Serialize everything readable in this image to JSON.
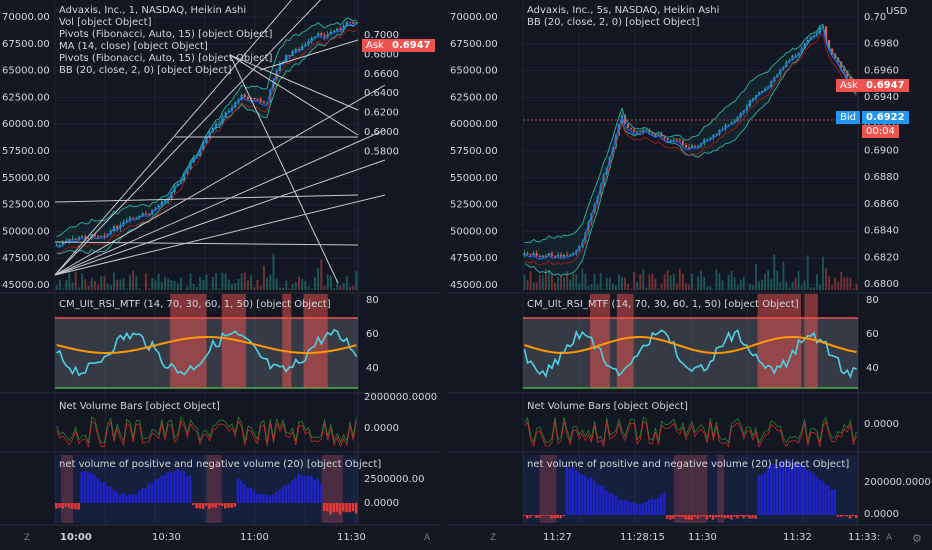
{
  "colors": {
    "bg": "#131722",
    "grid": "#1e2430",
    "up": "#26a69a",
    "down": "#ef5350",
    "ask": "#ef5350",
    "bid": "#2196f3",
    "teal": "#26a69a"
  },
  "left": {
    "legend": [
      "Advaxis, Inc., 1, NASDAQ, Heikin Ashi",
      "Vol [object Object]",
      "Pivots (Fibonacci, Auto, 15) [object Object]",
      "MA (14, close) [object Object]",
      "Pivots (Fibonacci, Auto, 15) [object Object]",
      "BB (20, close, 2, 0) [object Object]"
    ],
    "left_axis": [
      "70000.00",
      "67500.00",
      "65000.00",
      "62500.00",
      "60000.00",
      "57500.00",
      "55000.00",
      "52500.00",
      "50000.00",
      "47500.00",
      "45000.00"
    ],
    "right_axis": [
      "0.7000",
      "0.6800",
      "0.6600",
      "0.6400",
      "0.6200",
      "0.6000",
      "0.5800"
    ],
    "ask_label": "Ask",
    "ask_value": "0.6947",
    "rsi_title": "CM_Ult_RSI_MTF (14, 70, 30, 60, 1, 50) [object Object]",
    "rsi_axis": [
      "80",
      "60",
      "40"
    ],
    "nvb_title": "Net Volume Bars [object Object]",
    "nvb_axis": [
      "2000000.0000",
      "0.0000"
    ],
    "nv_title": "net volume of positive and negative volume (20) [object Object]",
    "nv_axis": [
      "2500000.00",
      "0.0000"
    ],
    "time_axis": [
      "10:00",
      "10:30",
      "11:00",
      "11:30"
    ]
  },
  "right": {
    "legend": [
      "Advaxis, Inc., 5s, NASDAQ, Heikin Ashi",
      "BB (20, close, 2, 0) [object Object]"
    ],
    "left_axis": [
      "70000.00",
      "67500.00",
      "65000.00",
      "62500.00",
      "60000.00",
      "57500.00",
      "55000.00",
      "52500.00",
      "50000.00",
      "47500.00",
      "45000.00"
    ],
    "right_axis": [
      "0.70",
      "0.6980",
      "0.6960",
      "0.6940",
      "0.6920",
      "0.6900",
      "0.6880",
      "0.6860",
      "0.6840",
      "0.6820",
      "0.6800"
    ],
    "currency": "USD",
    "ask_label": "Ask",
    "ask_value": "0.6947",
    "bid_label": "Bid",
    "bid_value": "0.6922",
    "bid_timer": "00:04",
    "rsi_title": "CM_Ult_RSI_MTF (14, 70, 30, 60, 1, 50) [object Object]",
    "rsi_axis": [
      "80",
      "60",
      "40"
    ],
    "nvb_title": "Net Volume Bars [object Object]",
    "nvb_axis": [
      "0.0000"
    ],
    "nv_title": "net volume of positive and negative volume (20) [object Object]",
    "nv_axis": [
      "200000.0000",
      "0.0000"
    ],
    "time_axis": [
      "11:27",
      "11:28:15",
      "11:30",
      "11:32",
      "11:33:"
    ]
  },
  "corner": {
    "z": "Z",
    "a": "A",
    "gear": "⚙"
  }
}
